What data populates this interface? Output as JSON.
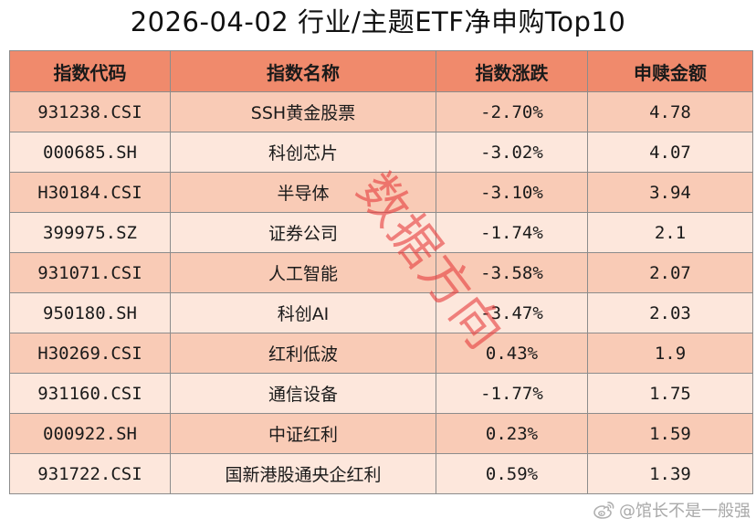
{
  "chart_data": {
    "type": "table",
    "title": "2026-04-02 行业/主题ETF净申购Top10",
    "columns": [
      "指数代码",
      "指数名称",
      "指数涨跌",
      "申赎金额"
    ],
    "rows": [
      {
        "code": "931238.CSI",
        "name": "SSH黄金股票",
        "change": "-2.70%",
        "amount": 4.78
      },
      {
        "code": "000685.SH",
        "name": "科创芯片",
        "change": "-3.02%",
        "amount": 4.07
      },
      {
        "code": "H30184.CSI",
        "name": "半导体",
        "change": "-3.10%",
        "amount": 3.94
      },
      {
        "code": "399975.SZ",
        "name": "证券公司",
        "change": "-1.74%",
        "amount": 2.1
      },
      {
        "code": "931071.CSI",
        "name": "人工智能",
        "change": "-3.58%",
        "amount": 2.07
      },
      {
        "code": "950180.SH",
        "name": "科创AI",
        "change": "-3.47%",
        "amount": 2.03
      },
      {
        "code": "H30269.CSI",
        "name": "红利低波",
        "change": "0.43%",
        "amount": 1.9
      },
      {
        "code": "931160.CSI",
        "name": "通信设备",
        "change": "-1.77%",
        "amount": 1.75
      },
      {
        "code": "000922.SH",
        "name": "中证红利",
        "change": "0.23%",
        "amount": 1.59
      },
      {
        "code": "931722.CSI",
        "name": "国新港股通央企红利",
        "change": "0.59%",
        "amount": 1.39
      }
    ]
  },
  "watermark": "数据方向",
  "credit": {
    "icon": "weibo-logo-icon",
    "text": "@馆长不是一般强"
  },
  "colors": {
    "header_bg": "#F08A6C",
    "row_odd_bg": "#F9CBB6",
    "row_even_bg": "#FDE7DC",
    "border": "#8C8C8C",
    "watermark": "#E63B3B",
    "credit": "#A9A9A9"
  }
}
